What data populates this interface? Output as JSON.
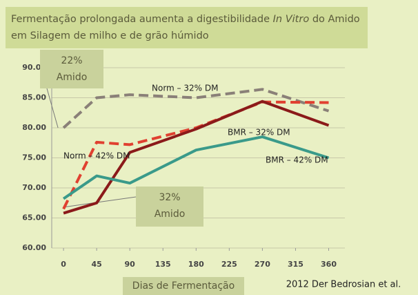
{
  "chart_data": {
    "type": "line",
    "title": [
      "Fermentação prolongada aumenta a digestibilidade",
      "In Vitro",
      "do Amido em Silagem de milho e de grão húmido"
    ],
    "x_label": "Dias de Fermentação",
    "source": "2012 Der Bedrosian et al.",
    "annotations": [
      [
        "22%",
        "Amido"
      ],
      [
        "32%",
        "Amido"
      ]
    ],
    "x": [
      0,
      45,
      90,
      180,
      270,
      360
    ],
    "series": [
      {
        "name": "Norm – 32% DM",
        "color": "#8a8078",
        "dash": true,
        "values": [
          80,
          85,
          85.5,
          85,
          86.4,
          82.8
        ]
      },
      {
        "name": "Norm – 42% DM",
        "color": "#e04030",
        "dash": true,
        "values": [
          66.5,
          77.6,
          77.2,
          80,
          84.3,
          84.2
        ]
      },
      {
        "name": "BMR – 32% DM",
        "color": "#8b1a1a",
        "dash": false,
        "values": [
          65.8,
          67.5,
          75.9,
          79.8,
          84.4,
          80.4
        ]
      },
      {
        "name": "BMR – 42% DM",
        "color": "#3a9a8a",
        "dash": false,
        "values": [
          68.2,
          72,
          70.8,
          76.3,
          78.5,
          75
        ]
      }
    ],
    "xlim": [
      -16,
      382
    ],
    "xticks": [
      0,
      45,
      90,
      135,
      180,
      225,
      270,
      315,
      360
    ],
    "ylim": [
      60,
      90
    ],
    "yticks": [
      {
        "value": 60,
        "label": "60.00"
      },
      {
        "value": 65,
        "label": "65.00"
      },
      {
        "value": 70,
        "label": "70.00"
      },
      {
        "value": 75,
        "label": "75.00"
      },
      {
        "value": 80,
        "label": "80.00"
      },
      {
        "value": 85,
        "label": "85.00"
      },
      {
        "value": 90,
        "label": "90.00"
      }
    ],
    "grid": true
  }
}
